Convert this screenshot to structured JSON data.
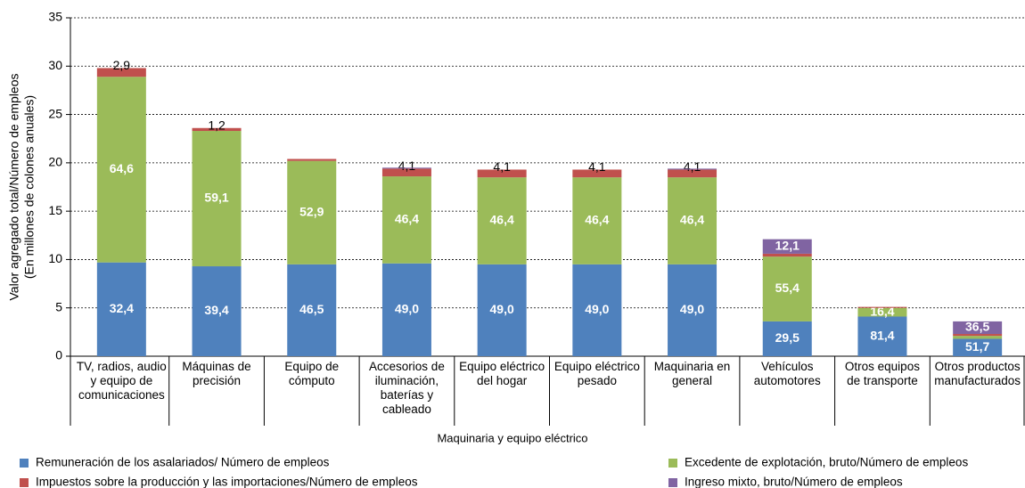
{
  "chart_data": {
    "type": "stacked_bar",
    "ylabel": [
      "Valor agregado total/Número de empleos",
      "(En millones de colones anuales)"
    ],
    "xlabel": "Maquinaria y equipo eléctrico",
    "categories": [
      "TV, radios, audio y equipo de comunicaciones",
      "Máquinas de precisión",
      "Equipo de cómputo",
      "Accesorios de iluminación, baterías y cableado",
      "Equipo eléctrico del hogar",
      "Equipo eléctrico pesado",
      "Maquinaria en general",
      "Vehículos automotores",
      "Otros equipos de transporte",
      "Otros productos manufacturados"
    ],
    "series": [
      {
        "name": "Remuneración de los asalariados/ Número de empleos",
        "color": "#4f81bd",
        "values": [
          9.7,
          9.3,
          9.5,
          9.6,
          9.5,
          9.5,
          9.5,
          3.6,
          4.1,
          1.8
        ],
        "data_labels": [
          {
            "value": 32.4,
            "label": "32,4"
          },
          {
            "value": 39.4,
            "label": "39,4"
          },
          {
            "value": 46.5,
            "label": "46,5"
          },
          {
            "value": 49.0,
            "label": "49,0"
          },
          {
            "value": 49.0,
            "label": "49,0"
          },
          {
            "value": 49.0,
            "label": "49,0"
          },
          {
            "value": 49.0,
            "label": "49,0"
          },
          {
            "value": 29.5,
            "label": "29,5"
          },
          {
            "value": 81.4,
            "label": "81,4"
          },
          {
            "value": 51.7,
            "label": "51,7"
          }
        ]
      },
      {
        "name": "Excedente de explotación, bruto/Número de empleos",
        "color": "#9bbb59",
        "values": [
          19.2,
          14.0,
          10.7,
          9.0,
          9.0,
          9.0,
          9.0,
          6.7,
          0.9,
          0.3
        ],
        "data_labels": [
          {
            "value": 64.6,
            "label": "64,6"
          },
          {
            "value": 59.1,
            "label": "59,1"
          },
          {
            "value": 52.9,
            "label": "52,9"
          },
          {
            "value": 46.4,
            "label": "46,4"
          },
          {
            "value": 46.4,
            "label": "46,4"
          },
          {
            "value": 46.4,
            "label": "46,4"
          },
          {
            "value": 46.4,
            "label": "46,4"
          },
          {
            "value": 55.4,
            "label": "55,4"
          },
          {
            "value": 16.4,
            "label": "16,4"
          },
          null
        ]
      },
      {
        "name": "Impuestos sobre la producción y las importaciones/Número de empleos",
        "color": "#c0504d",
        "values": [
          0.9,
          0.3,
          0.2,
          0.8,
          0.8,
          0.8,
          0.8,
          0.3,
          0.1,
          0.2
        ],
        "data_labels": [
          {
            "value": 2.9,
            "label": "2,9"
          },
          {
            "value": 1.2,
            "label": "1,2"
          },
          null,
          {
            "value": 4.1,
            "label": "4,1"
          },
          {
            "value": 4.1,
            "label": "4,1"
          },
          {
            "value": 4.1,
            "label": "4,1"
          },
          {
            "value": 4.1,
            "label": "4,1"
          },
          null,
          null,
          null
        ]
      },
      {
        "name": "Ingreso mixto, bruto/Número de empleos",
        "color": "#8064a2",
        "values": [
          0,
          0,
          0,
          0.1,
          0,
          0,
          0.1,
          1.5,
          0,
          1.3
        ],
        "data_labels": [
          null,
          null,
          null,
          null,
          null,
          null,
          null,
          {
            "value": 12.1,
            "label": "12,1"
          },
          null,
          {
            "value": 36.5,
            "label": "36,5"
          }
        ]
      }
    ],
    "ylim": [
      0,
      35
    ],
    "yticks": [
      0,
      5,
      10,
      15,
      20,
      25,
      30,
      35
    ],
    "grid": true
  }
}
